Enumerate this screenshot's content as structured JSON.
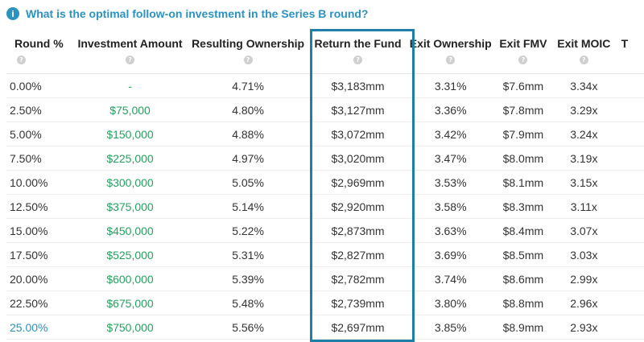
{
  "question": {
    "icon": "info-icon",
    "text": "What is the optimal follow-on investment in the Series B round?"
  },
  "table": {
    "columns": [
      "Round %",
      "Investment Amount",
      "Resulting Ownership",
      "Return the Fund",
      "Exit Ownership",
      "Exit FMV",
      "Exit MOIC",
      "T"
    ],
    "help_icon": "?",
    "highlighted_column": "Return the Fund",
    "colors": {
      "accent": "#2b92c2",
      "positive": "#22a35e",
      "highlight_border": "#1d7fa6"
    },
    "rows": [
      [
        "0.00%",
        "-",
        "4.71%",
        "$3,183mm",
        "3.31%",
        "$7.6mm",
        "3.34x",
        ""
      ],
      [
        "2.50%",
        "$75,000",
        "4.80%",
        "$3,127mm",
        "3.36%",
        "$7.8mm",
        "3.29x",
        ""
      ],
      [
        "5.00%",
        "$150,000",
        "4.88%",
        "$3,072mm",
        "3.42%",
        "$7.9mm",
        "3.24x",
        ""
      ],
      [
        "7.50%",
        "$225,000",
        "4.97%",
        "$3,020mm",
        "3.47%",
        "$8.0mm",
        "3.19x",
        ""
      ],
      [
        "10.00%",
        "$300,000",
        "5.05%",
        "$2,969mm",
        "3.53%",
        "$8.1mm",
        "3.15x",
        ""
      ],
      [
        "12.50%",
        "$375,000",
        "5.14%",
        "$2,920mm",
        "3.58%",
        "$8.3mm",
        "3.11x",
        ""
      ],
      [
        "15.00%",
        "$450,000",
        "5.22%",
        "$2,873mm",
        "3.63%",
        "$8.4mm",
        "3.07x",
        ""
      ],
      [
        "17.50%",
        "$525,000",
        "5.31%",
        "$2,827mm",
        "3.69%",
        "$8.5mm",
        "3.03x",
        ""
      ],
      [
        "20.00%",
        "$600,000",
        "5.39%",
        "$2,782mm",
        "3.74%",
        "$8.6mm",
        "2.99x",
        ""
      ],
      [
        "22.50%",
        "$675,000",
        "5.48%",
        "$2,739mm",
        "3.80%",
        "$8.8mm",
        "2.96x",
        ""
      ],
      [
        "25.00%",
        "$750,000",
        "5.56%",
        "$2,697mm",
        "3.85%",
        "$8.9mm",
        "2.93x",
        ""
      ]
    ]
  }
}
